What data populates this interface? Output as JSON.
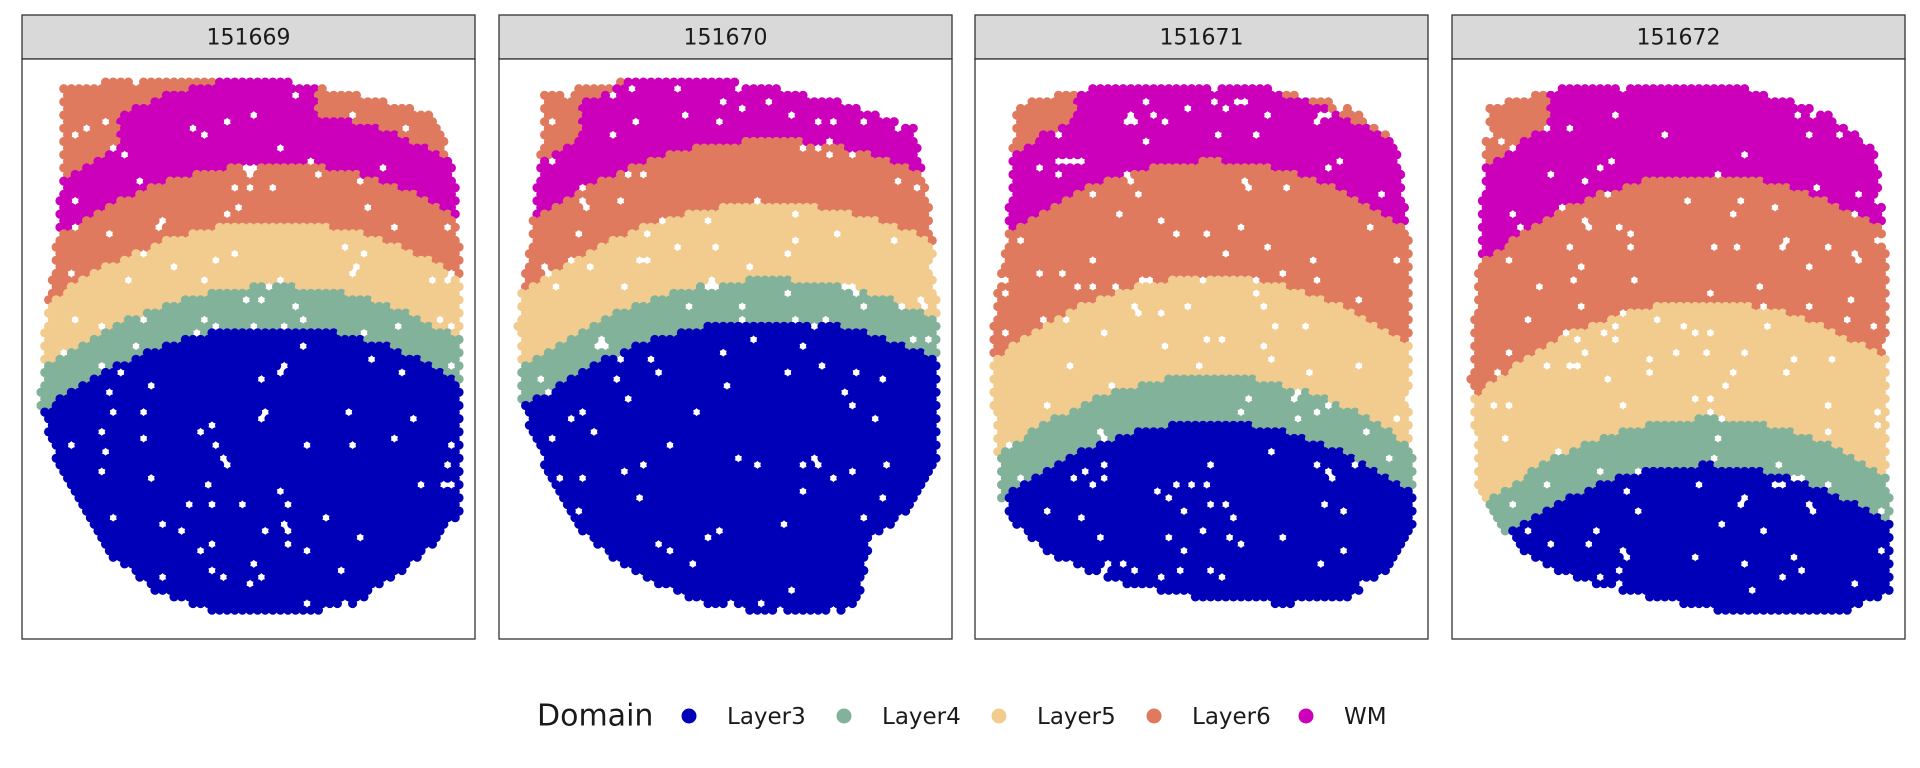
{
  "chart_data": [
    {
      "type": "scatter",
      "panel": "151669",
      "regions": [
        {
          "domain": "WM",
          "depth": [
            0.0,
            0.09
          ]
        },
        {
          "domain": "Layer6",
          "depth": [
            0.09,
            0.19
          ]
        },
        {
          "domain": "Layer5",
          "depth": [
            0.19,
            0.3
          ]
        },
        {
          "domain": "Layer4",
          "depth": [
            0.3,
            0.37
          ]
        },
        {
          "domain": "Layer3",
          "depth": [
            0.37,
            1.0
          ]
        }
      ]
    },
    {
      "type": "scatter",
      "panel": "151670",
      "regions": [
        {
          "domain": "WM",
          "depth": [
            0.0,
            0.09
          ]
        },
        {
          "domain": "Layer6",
          "depth": [
            0.09,
            0.2
          ]
        },
        {
          "domain": "Layer5",
          "depth": [
            0.2,
            0.33
          ]
        },
        {
          "domain": "Layer4",
          "depth": [
            0.33,
            0.4
          ]
        },
        {
          "domain": "Layer3",
          "depth": [
            0.4,
            1.0
          ]
        }
      ]
    },
    {
      "type": "scatter",
      "panel": "151671",
      "regions": [
        {
          "domain": "WM",
          "depth": [
            0.0,
            0.13
          ]
        },
        {
          "domain": "Layer6",
          "depth": [
            0.13,
            0.33
          ]
        },
        {
          "domain": "Layer5",
          "depth": [
            0.33,
            0.5
          ]
        },
        {
          "domain": "Layer4",
          "depth": [
            0.5,
            0.58
          ]
        },
        {
          "domain": "Layer3",
          "depth": [
            0.58,
            1.0
          ]
        }
      ]
    },
    {
      "type": "scatter",
      "panel": "151672",
      "regions": [
        {
          "domain": "WM",
          "depth": [
            0.0,
            0.16
          ]
        },
        {
          "domain": "Layer6",
          "depth": [
            0.16,
            0.38
          ]
        },
        {
          "domain": "Layer5",
          "depth": [
            0.38,
            0.58
          ]
        },
        {
          "domain": "Layer4",
          "depth": [
            0.58,
            0.66
          ]
        },
        {
          "domain": "Layer3",
          "depth": [
            0.66,
            1.0
          ]
        }
      ]
    }
  ],
  "panels": [
    "151669",
    "151670",
    "151671",
    "151672"
  ],
  "legend": {
    "title": "Domain",
    "placement": "bottom",
    "items": [
      {
        "label": "Layer3",
        "color": "#0000b8"
      },
      {
        "label": "Layer4",
        "color": "#82b29a"
      },
      {
        "label": "Layer5",
        "color": "#f2cc8f"
      },
      {
        "label": "Layer6",
        "color": "#e07a5f"
      },
      {
        "label": "WM",
        "color": "#cc00bb"
      }
    ]
  }
}
